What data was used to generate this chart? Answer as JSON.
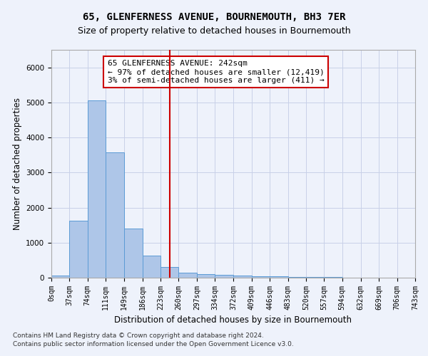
{
  "title": "65, GLENFERNESS AVENUE, BOURNEMOUTH, BH3 7ER",
  "subtitle": "Size of property relative to detached houses in Bournemouth",
  "xlabel": "Distribution of detached houses by size in Bournemouth",
  "ylabel": "Number of detached properties",
  "bar_values": [
    60,
    1620,
    5060,
    3580,
    1410,
    620,
    295,
    150,
    110,
    80,
    65,
    50,
    45,
    30,
    20,
    15,
    10,
    8,
    5,
    5
  ],
  "bin_edges": [
    0,
    37,
    74,
    111,
    149,
    186,
    223,
    260,
    297,
    334,
    372,
    409,
    446,
    483,
    520,
    557,
    594,
    632,
    669,
    706,
    743
  ],
  "tick_labels": [
    "0sqm",
    "37sqm",
    "74sqm",
    "111sqm",
    "149sqm",
    "186sqm",
    "223sqm",
    "260sqm",
    "297sqm",
    "334sqm",
    "372sqm",
    "409sqm",
    "446sqm",
    "483sqm",
    "520sqm",
    "557sqm",
    "594sqm",
    "632sqm",
    "669sqm",
    "706sqm",
    "743sqm"
  ],
  "bar_color": "#aec6e8",
  "bar_edge_color": "#5b9bd5",
  "vline_x": 242,
  "vline_color": "#cc0000",
  "annotation_line1": "65 GLENFERNESS AVENUE: 242sqm",
  "annotation_line2": "← 97% of detached houses are smaller (12,419)",
  "annotation_line3": "3% of semi-detached houses are larger (411) →",
  "annotation_box_color": "#cc0000",
  "background_color": "#eef2fb",
  "grid_color": "#c8d0e8",
  "ylim": [
    0,
    6500
  ],
  "footer_line1": "Contains HM Land Registry data © Crown copyright and database right 2024.",
  "footer_line2": "Contains public sector information licensed under the Open Government Licence v3.0.",
  "title_fontsize": 10,
  "subtitle_fontsize": 9,
  "axis_label_fontsize": 8.5,
  "tick_fontsize": 7,
  "annotation_fontsize": 8,
  "footer_fontsize": 6.5
}
